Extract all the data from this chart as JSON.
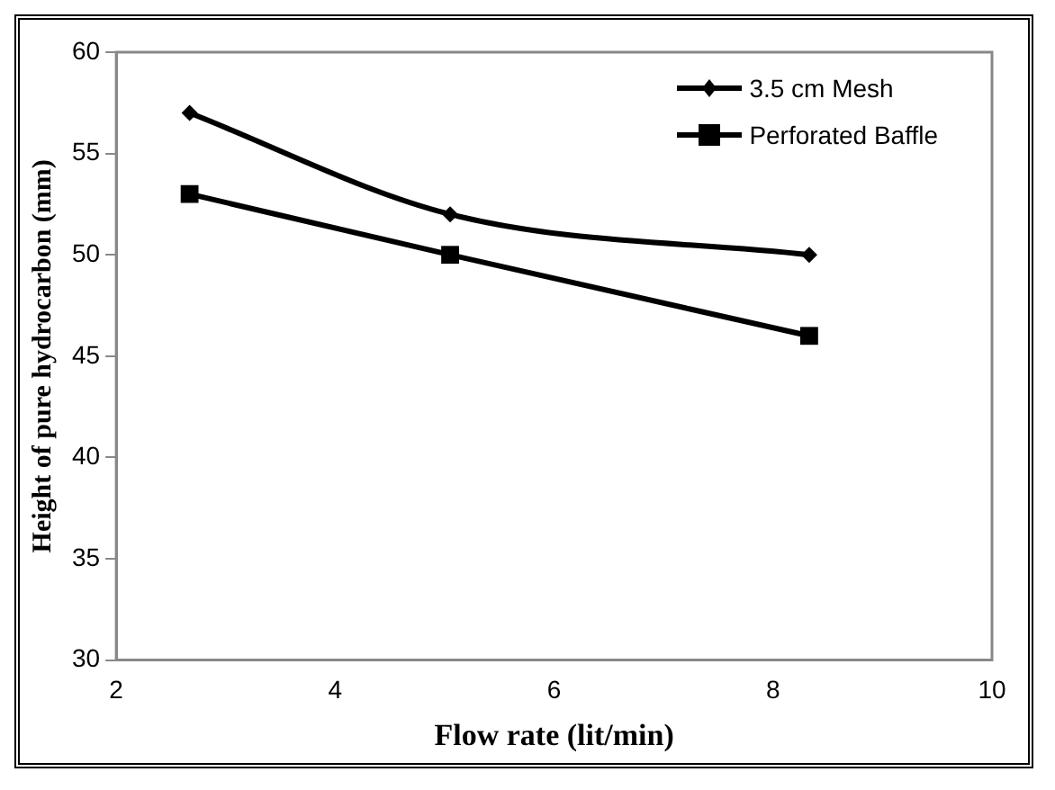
{
  "chart_data": {
    "type": "line",
    "xlabel": "Flow rate (lit/min)",
    "ylabel": "Height of pure hydrocarbon (mm)",
    "xlim": [
      2,
      10
    ],
    "xticks": [
      2,
      4,
      6,
      8,
      10
    ],
    "ylim": [
      30,
      60
    ],
    "yticks": [
      30,
      35,
      40,
      45,
      50,
      55,
      60
    ],
    "grid": false,
    "legend": "top right",
    "series": [
      {
        "name": "3.5 cm Mesh",
        "color": "#000000",
        "marker": "diamond",
        "x": [
          2.67,
          5.05,
          8.33
        ],
        "values": [
          57,
          52,
          50
        ]
      },
      {
        "name": "Perforated Baffle",
        "color": "#000000",
        "marker": "square",
        "x": [
          2.67,
          5.05,
          8.33
        ],
        "values": [
          53,
          50,
          46
        ]
      }
    ]
  }
}
